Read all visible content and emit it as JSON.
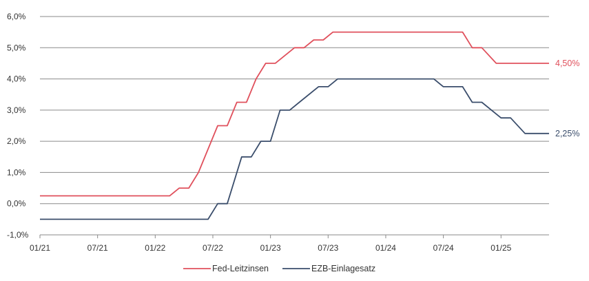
{
  "chart_data": {
    "type": "line",
    "title": "",
    "xlabel": "",
    "ylabel": "",
    "ylim": [
      -1.0,
      6.0
    ],
    "y_ticks": [
      "6,0%",
      "5,0%",
      "4,0%",
      "3,0%",
      "2,0%",
      "1,0%",
      "0,0%",
      "-1,0%"
    ],
    "y_tick_values": [
      6,
      5,
      4,
      3,
      2,
      1,
      0,
      -1
    ],
    "x_range": [
      0,
      53
    ],
    "x_ticks": [
      {
        "label": "01/21",
        "month": 0
      },
      {
        "label": "07/21",
        "month": 6
      },
      {
        "label": "01/22",
        "month": 12
      },
      {
        "label": "07/22",
        "month": 18
      },
      {
        "label": "01/23",
        "month": 24
      },
      {
        "label": "07/23",
        "month": 30
      },
      {
        "label": "01/24",
        "month": 36
      },
      {
        "label": "07/24",
        "month": 42
      },
      {
        "label": "01/25",
        "month": 48
      }
    ],
    "grid": true,
    "legend_position": "bottom-center",
    "series": [
      {
        "name": "Fed-Leitzinsen",
        "color": "#e0505c",
        "end_label": "4,50%",
        "points": [
          [
            0,
            0.25
          ],
          [
            13.5,
            0.25
          ],
          [
            14.5,
            0.5
          ],
          [
            15.5,
            0.5
          ],
          [
            16.5,
            1.0
          ],
          [
            17.5,
            1.75
          ],
          [
            18.5,
            2.5
          ],
          [
            19.5,
            2.5
          ],
          [
            20.5,
            3.25
          ],
          [
            21.5,
            3.25
          ],
          [
            22.5,
            4.0
          ],
          [
            23.5,
            4.5
          ],
          [
            24.5,
            4.5
          ],
          [
            25.5,
            4.75
          ],
          [
            26.5,
            5.0
          ],
          [
            27.5,
            5.0
          ],
          [
            28.5,
            5.25
          ],
          [
            29.5,
            5.25
          ],
          [
            30.5,
            5.5
          ],
          [
            44.0,
            5.5
          ],
          [
            45.0,
            5.0
          ],
          [
            46.0,
            5.0
          ],
          [
            47.5,
            4.5
          ],
          [
            53.0,
            4.5
          ]
        ]
      },
      {
        "name": "EZB-Einlagesatz",
        "color": "#3a4d6b",
        "end_label": "2,25%",
        "points": [
          [
            0,
            -0.5
          ],
          [
            17.5,
            -0.5
          ],
          [
            18.5,
            0.0
          ],
          [
            19.5,
            0.0
          ],
          [
            21.0,
            1.5
          ],
          [
            22.0,
            1.5
          ],
          [
            23.0,
            2.0
          ],
          [
            24.0,
            2.0
          ],
          [
            25.0,
            3.0
          ],
          [
            26.0,
            3.0
          ],
          [
            27.0,
            3.25
          ],
          [
            29.0,
            3.75
          ],
          [
            30.0,
            3.75
          ],
          [
            31.0,
            4.0
          ],
          [
            41.0,
            4.0
          ],
          [
            42.0,
            3.75
          ],
          [
            44.0,
            3.75
          ],
          [
            45.0,
            3.25
          ],
          [
            46.0,
            3.25
          ],
          [
            48.0,
            2.75
          ],
          [
            49.0,
            2.75
          ],
          [
            50.5,
            2.25
          ],
          [
            53.0,
            2.25
          ]
        ]
      }
    ]
  }
}
